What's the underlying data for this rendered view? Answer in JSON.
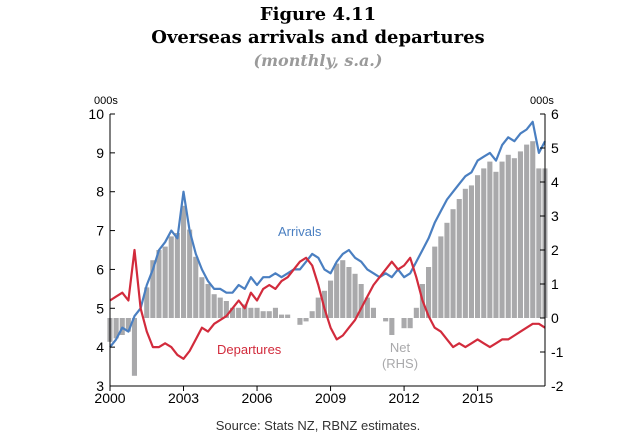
{
  "figure": {
    "number": "Figure 4.11",
    "title": "Overseas arrivals and departures",
    "subtitle": "(monthly, s.a.)",
    "source": "Source: Stats NZ, RBNZ estimates."
  },
  "chart_data": {
    "type": "line",
    "x_range": [
      2000.0,
      2017.75
    ],
    "x_ticks": [
      2000,
      2003,
      2006,
      2009,
      2012,
      2015
    ],
    "y_left": {
      "unit": "000s",
      "range": [
        3,
        10
      ],
      "ticks": [
        3,
        4,
        5,
        6,
        7,
        8,
        9,
        10
      ]
    },
    "y_right": {
      "unit": "000s",
      "range": [
        -2,
        6
      ],
      "ticks": [
        -2,
        -1,
        0,
        1,
        2,
        3,
        4,
        5,
        6
      ]
    },
    "series": [
      {
        "name": "Arrivals",
        "axis": "left",
        "kind": "line",
        "color": "#4a7fc1",
        "points": [
          [
            2000.0,
            4.0
          ],
          [
            2000.25,
            4.2
          ],
          [
            2000.5,
            4.5
          ],
          [
            2000.75,
            4.4
          ],
          [
            2001.0,
            4.8
          ],
          [
            2001.25,
            5.0
          ],
          [
            2001.5,
            5.6
          ],
          [
            2001.75,
            6.0
          ],
          [
            2002.0,
            6.5
          ],
          [
            2002.25,
            6.7
          ],
          [
            2002.5,
            7.0
          ],
          [
            2002.75,
            6.8
          ],
          [
            2003.0,
            8.0
          ],
          [
            2003.25,
            7.0
          ],
          [
            2003.5,
            6.4
          ],
          [
            2003.75,
            6.0
          ],
          [
            2004.0,
            5.7
          ],
          [
            2004.25,
            5.5
          ],
          [
            2004.5,
            5.5
          ],
          [
            2004.75,
            5.4
          ],
          [
            2005.0,
            5.4
          ],
          [
            2005.25,
            5.6
          ],
          [
            2005.5,
            5.5
          ],
          [
            2005.75,
            5.8
          ],
          [
            2006.0,
            5.6
          ],
          [
            2006.25,
            5.8
          ],
          [
            2006.5,
            5.8
          ],
          [
            2006.75,
            5.9
          ],
          [
            2007.0,
            5.8
          ],
          [
            2007.25,
            5.9
          ],
          [
            2007.5,
            6.0
          ],
          [
            2007.75,
            6.0
          ],
          [
            2008.0,
            6.2
          ],
          [
            2008.25,
            6.4
          ],
          [
            2008.5,
            6.3
          ],
          [
            2008.75,
            6.0
          ],
          [
            2009.0,
            5.9
          ],
          [
            2009.25,
            6.2
          ],
          [
            2009.5,
            6.4
          ],
          [
            2009.75,
            6.5
          ],
          [
            2010.0,
            6.3
          ],
          [
            2010.25,
            6.2
          ],
          [
            2010.5,
            6.0
          ],
          [
            2010.75,
            5.9
          ],
          [
            2011.0,
            5.8
          ],
          [
            2011.25,
            5.9
          ],
          [
            2011.5,
            5.8
          ],
          [
            2011.75,
            6.0
          ],
          [
            2012.0,
            5.8
          ],
          [
            2012.25,
            5.9
          ],
          [
            2012.5,
            6.2
          ],
          [
            2012.75,
            6.5
          ],
          [
            2013.0,
            6.8
          ],
          [
            2013.25,
            7.2
          ],
          [
            2013.5,
            7.5
          ],
          [
            2013.75,
            7.8
          ],
          [
            2014.0,
            8.0
          ],
          [
            2014.25,
            8.2
          ],
          [
            2014.5,
            8.4
          ],
          [
            2014.75,
            8.5
          ],
          [
            2015.0,
            8.8
          ],
          [
            2015.25,
            8.9
          ],
          [
            2015.5,
            9.0
          ],
          [
            2015.75,
            8.8
          ],
          [
            2016.0,
            9.2
          ],
          [
            2016.25,
            9.4
          ],
          [
            2016.5,
            9.3
          ],
          [
            2016.75,
            9.5
          ],
          [
            2017.0,
            9.6
          ],
          [
            2017.25,
            9.8
          ],
          [
            2017.5,
            9.0
          ],
          [
            2017.75,
            9.3
          ]
        ]
      },
      {
        "name": "Departures",
        "axis": "left",
        "kind": "line",
        "color": "#d22b3c",
        "points": [
          [
            2000.0,
            5.2
          ],
          [
            2000.25,
            5.3
          ],
          [
            2000.5,
            5.4
          ],
          [
            2000.75,
            5.2
          ],
          [
            2001.0,
            6.5
          ],
          [
            2001.25,
            5.0
          ],
          [
            2001.5,
            4.4
          ],
          [
            2001.75,
            4.0
          ],
          [
            2002.0,
            4.0
          ],
          [
            2002.25,
            4.1
          ],
          [
            2002.5,
            4.0
          ],
          [
            2002.75,
            3.8
          ],
          [
            2003.0,
            3.7
          ],
          [
            2003.25,
            3.9
          ],
          [
            2003.5,
            4.2
          ],
          [
            2003.75,
            4.5
          ],
          [
            2004.0,
            4.4
          ],
          [
            2004.25,
            4.6
          ],
          [
            2004.5,
            4.7
          ],
          [
            2004.75,
            4.8
          ],
          [
            2005.0,
            5.0
          ],
          [
            2005.25,
            5.2
          ],
          [
            2005.5,
            5.0
          ],
          [
            2005.75,
            5.4
          ],
          [
            2006.0,
            5.2
          ],
          [
            2006.25,
            5.5
          ],
          [
            2006.5,
            5.6
          ],
          [
            2006.75,
            5.5
          ],
          [
            2007.0,
            5.7
          ],
          [
            2007.25,
            5.8
          ],
          [
            2007.5,
            6.0
          ],
          [
            2007.75,
            6.2
          ],
          [
            2008.0,
            6.3
          ],
          [
            2008.25,
            6.1
          ],
          [
            2008.5,
            5.6
          ],
          [
            2008.75,
            5.0
          ],
          [
            2009.0,
            4.5
          ],
          [
            2009.25,
            4.2
          ],
          [
            2009.5,
            4.3
          ],
          [
            2009.75,
            4.5
          ],
          [
            2010.0,
            4.7
          ],
          [
            2010.25,
            5.0
          ],
          [
            2010.5,
            5.3
          ],
          [
            2010.75,
            5.6
          ],
          [
            2011.0,
            5.8
          ],
          [
            2011.25,
            6.0
          ],
          [
            2011.5,
            6.2
          ],
          [
            2011.75,
            6.0
          ],
          [
            2012.0,
            6.1
          ],
          [
            2012.25,
            6.3
          ],
          [
            2012.5,
            5.8
          ],
          [
            2012.75,
            5.2
          ],
          [
            2013.0,
            4.8
          ],
          [
            2013.25,
            4.5
          ],
          [
            2013.5,
            4.4
          ],
          [
            2013.75,
            4.2
          ],
          [
            2014.0,
            4.0
          ],
          [
            2014.25,
            4.1
          ],
          [
            2014.5,
            4.0
          ],
          [
            2014.75,
            4.1
          ],
          [
            2015.0,
            4.2
          ],
          [
            2015.25,
            4.1
          ],
          [
            2015.5,
            4.0
          ],
          [
            2015.75,
            4.1
          ],
          [
            2016.0,
            4.2
          ],
          [
            2016.25,
            4.2
          ],
          [
            2016.5,
            4.3
          ],
          [
            2016.75,
            4.4
          ],
          [
            2017.0,
            4.5
          ],
          [
            2017.25,
            4.6
          ],
          [
            2017.5,
            4.6
          ],
          [
            2017.75,
            4.5
          ]
        ]
      },
      {
        "name": "Net",
        "sublabel": "(RHS)",
        "axis": "right",
        "kind": "bars",
        "color": "#a9a9ab",
        "points": [
          [
            2000.0,
            -0.7
          ],
          [
            2000.25,
            -0.6
          ],
          [
            2000.5,
            -0.5
          ],
          [
            2000.75,
            -0.4
          ],
          [
            2001.0,
            -1.7
          ],
          [
            2001.25,
            0.0
          ],
          [
            2001.5,
            0.9
          ],
          [
            2001.75,
            1.7
          ],
          [
            2002.0,
            2.0
          ],
          [
            2002.25,
            2.1
          ],
          [
            2002.5,
            2.4
          ],
          [
            2002.75,
            2.5
          ],
          [
            2003.0,
            3.3
          ],
          [
            2003.25,
            2.6
          ],
          [
            2003.5,
            1.8
          ],
          [
            2003.75,
            1.2
          ],
          [
            2004.0,
            1.0
          ],
          [
            2004.25,
            0.7
          ],
          [
            2004.5,
            0.6
          ],
          [
            2004.75,
            0.5
          ],
          [
            2005.0,
            0.3
          ],
          [
            2005.25,
            0.3
          ],
          [
            2005.5,
            0.4
          ],
          [
            2005.75,
            0.3
          ],
          [
            2006.0,
            0.3
          ],
          [
            2006.25,
            0.2
          ],
          [
            2006.5,
            0.2
          ],
          [
            2006.75,
            0.3
          ],
          [
            2007.0,
            0.1
          ],
          [
            2007.25,
            0.1
          ],
          [
            2007.5,
            0.0
          ],
          [
            2007.75,
            -0.2
          ],
          [
            2008.0,
            -0.1
          ],
          [
            2008.25,
            0.2
          ],
          [
            2008.5,
            0.6
          ],
          [
            2008.75,
            0.8
          ],
          [
            2009.0,
            1.1
          ],
          [
            2009.25,
            1.6
          ],
          [
            2009.5,
            1.7
          ],
          [
            2009.75,
            1.5
          ],
          [
            2010.0,
            1.3
          ],
          [
            2010.25,
            1.0
          ],
          [
            2010.5,
            0.6
          ],
          [
            2010.75,
            0.3
          ],
          [
            2011.0,
            0.0
          ],
          [
            2011.25,
            -0.1
          ],
          [
            2011.5,
            -0.5
          ],
          [
            2011.75,
            0.0
          ],
          [
            2012.0,
            -0.3
          ],
          [
            2012.25,
            -0.3
          ],
          [
            2012.5,
            0.3
          ],
          [
            2012.75,
            1.0
          ],
          [
            2013.0,
            1.5
          ],
          [
            2013.25,
            2.1
          ],
          [
            2013.5,
            2.4
          ],
          [
            2013.75,
            2.8
          ],
          [
            2014.0,
            3.2
          ],
          [
            2014.25,
            3.5
          ],
          [
            2014.5,
            3.8
          ],
          [
            2014.75,
            3.9
          ],
          [
            2015.0,
            4.2
          ],
          [
            2015.25,
            4.4
          ],
          [
            2015.5,
            4.6
          ],
          [
            2015.75,
            4.3
          ],
          [
            2016.0,
            4.6
          ],
          [
            2016.25,
            4.8
          ],
          [
            2016.5,
            4.7
          ],
          [
            2016.75,
            4.9
          ],
          [
            2017.0,
            5.1
          ],
          [
            2017.25,
            5.2
          ],
          [
            2017.5,
            4.4
          ],
          [
            2017.75,
            4.4
          ]
        ]
      }
    ],
    "annotations": {
      "arrivals": "Arrivals",
      "departures": "Departures",
      "net": "Net",
      "net_sub": "(RHS)"
    },
    "grid": false
  }
}
